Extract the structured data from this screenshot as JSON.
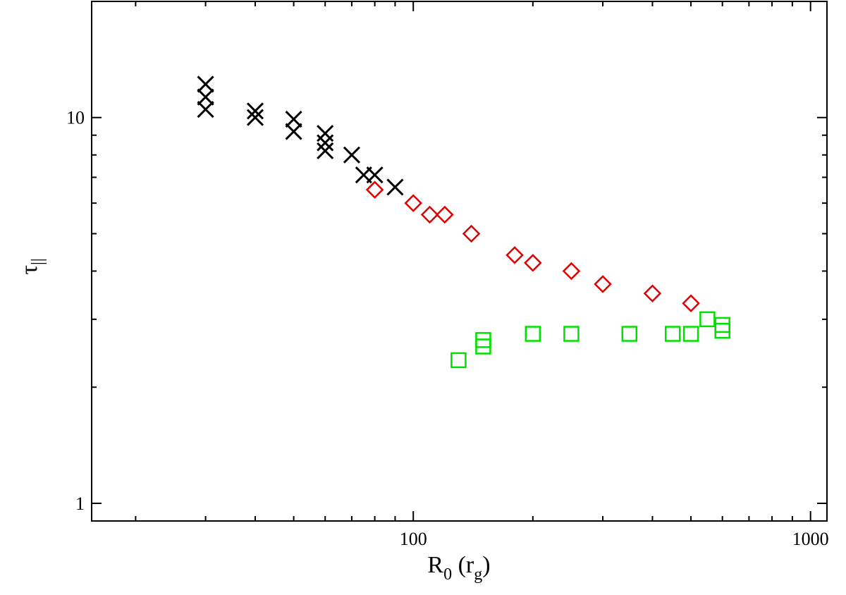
{
  "chart_data": {
    "type": "scatter",
    "title": "",
    "x_scale": "log",
    "y_scale": "log",
    "xlim": [
      15.5,
      1100
    ],
    "ylim": [
      0.9,
      20
    ],
    "grid": false,
    "legend": "none",
    "xlabel": {
      "main": "R",
      "sub1": "0",
      "mid": " (r",
      "sub2": "g",
      "end": ")"
    },
    "ylabel": {
      "main": "τ",
      "sub": "||"
    },
    "x_tick_labels": [
      {
        "value": 100,
        "label": "100"
      },
      {
        "value": 1000,
        "label": "1000"
      }
    ],
    "y_tick_labels": [
      {
        "value": 1,
        "label": "1"
      },
      {
        "value": 10,
        "label": "10"
      }
    ],
    "series": [
      {
        "marker": "x",
        "color": "#000000",
        "x": [
          30,
          30,
          30,
          40,
          40,
          50,
          50,
          60,
          60,
          60,
          70,
          75,
          80,
          90
        ],
        "y": [
          12.2,
          11.3,
          10.5,
          10.4,
          10.0,
          9.9,
          9.2,
          9.1,
          8.6,
          8.2,
          8.0,
          7.1,
          7.1,
          6.6
        ]
      },
      {
        "marker": "diamond",
        "color": "#e00000",
        "x": [
          80,
          100,
          110,
          120,
          140,
          180,
          200,
          250,
          300,
          400,
          500
        ],
        "y": [
          6.5,
          6.0,
          5.6,
          5.6,
          5.0,
          4.4,
          4.2,
          4.0,
          3.7,
          3.5,
          3.3
        ]
      },
      {
        "marker": "square",
        "color": "#00e000",
        "x": [
          130,
          150,
          150,
          200,
          250,
          350,
          450,
          500,
          550,
          600,
          600
        ],
        "y": [
          2.35,
          2.55,
          2.65,
          2.75,
          2.75,
          2.75,
          2.75,
          2.75,
          3.0,
          2.9,
          2.8
        ]
      }
    ]
  }
}
